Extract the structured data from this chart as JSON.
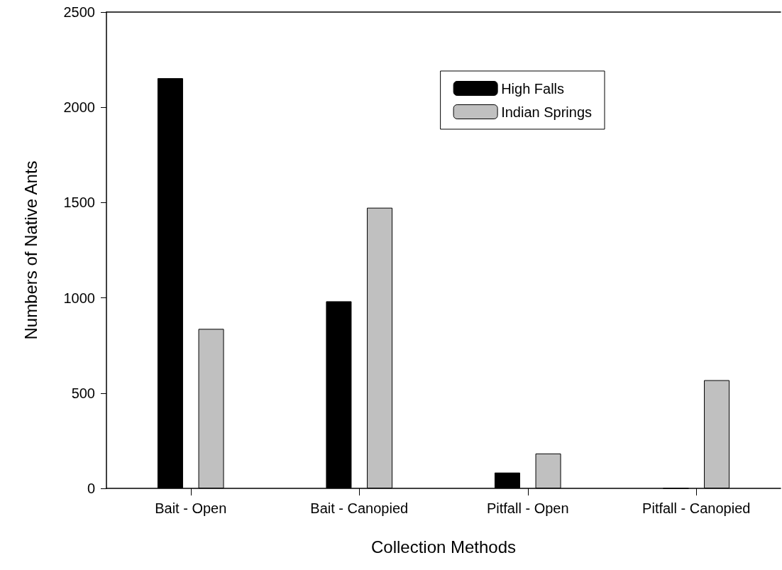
{
  "chart_data": {
    "type": "bar",
    "xlabel": "Collection Methods",
    "ylabel": "Numbers of Native Ants",
    "categories": [
      "Bait - Open",
      "Bait - Canopied",
      "Pitfall - Open",
      "Pitfall - Canopied"
    ],
    "series": [
      {
        "name": "High Falls",
        "color": "#000000",
        "values": [
          2153,
          982,
          83,
          0
        ]
      },
      {
        "name": "Indian Springs",
        "color": "#c0c0c0",
        "values": [
          837,
          1473,
          183,
          568
        ]
      }
    ],
    "ylim": [
      0,
      2500
    ],
    "yticks": [
      0,
      500,
      1000,
      1500,
      2000,
      2500
    ],
    "grid": false,
    "legend": "top right"
  }
}
